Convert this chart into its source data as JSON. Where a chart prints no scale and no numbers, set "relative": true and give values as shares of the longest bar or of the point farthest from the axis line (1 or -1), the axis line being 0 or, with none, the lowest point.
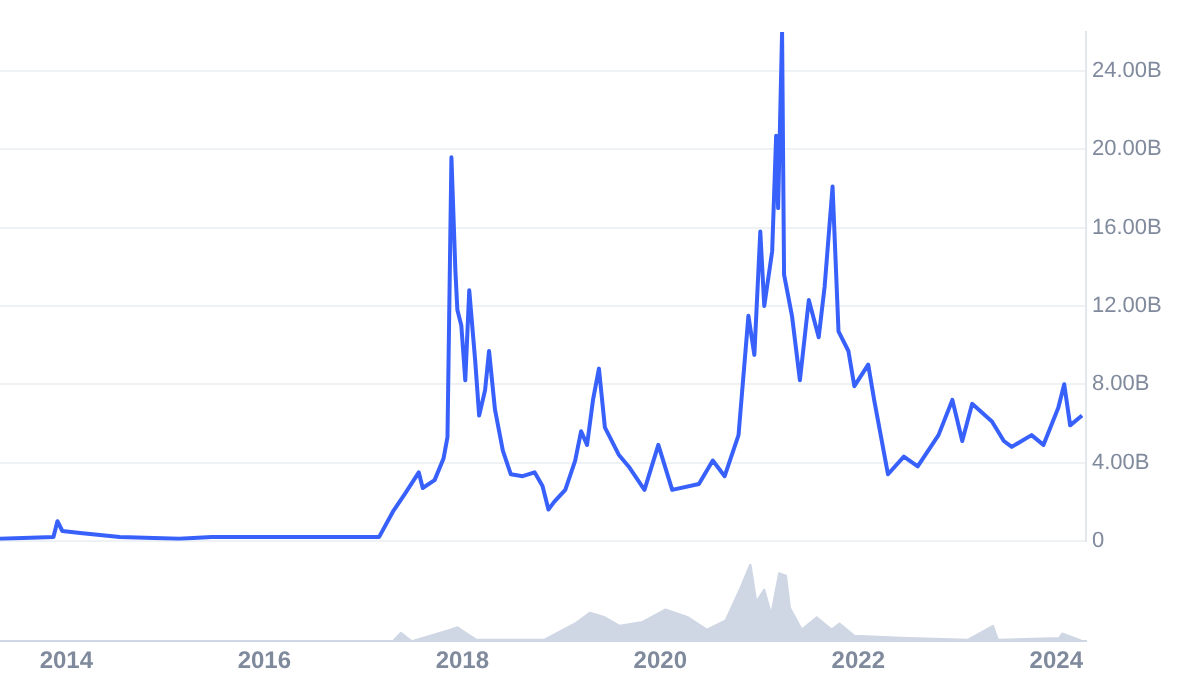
{
  "chart_data": [
    {
      "type": "line",
      "xlim": [
        2013.33,
        2024.3
      ],
      "xticks": [
        2014,
        2016,
        2018,
        2020,
        2022,
        2024
      ],
      "ylim": [
        0,
        26
      ],
      "yticks": [
        0,
        {
          "value": 4,
          "label": "4.00B"
        },
        {
          "value": 8,
          "label": "8.00B"
        },
        {
          "value": 12,
          "label": "12.00B"
        },
        {
          "value": 16,
          "label": "16.00B"
        },
        {
          "value": 20,
          "label": "20.00B"
        },
        {
          "value": 24,
          "label": "24.00B"
        }
      ],
      "grid": "y",
      "tick_labels": "y",
      "marker": "none",
      "series": [
        {
          "color": "#3861fb",
          "x": [
            2013.33,
            2013.87,
            2013.91,
            2013.96,
            2014.14,
            2014.54,
            2015.14,
            2015.47,
            2016.35,
            2017.16,
            2017.3,
            2017.42,
            2017.56,
            2017.6,
            2017.72,
            2017.81,
            2017.85,
            2017.89,
            2017.93,
            2017.95,
            2017.99,
            2018.03,
            2018.07,
            2018.13,
            2018.17,
            2018.23,
            2018.27,
            2018.33,
            2018.41,
            2018.49,
            2018.61,
            2018.73,
            2018.81,
            2018.87,
            2018.93,
            2019.04,
            2019.14,
            2019.2,
            2019.26,
            2019.32,
            2019.38,
            2019.44,
            2019.58,
            2019.68,
            2019.84,
            2019.98,
            2020.12,
            2020.39,
            2020.53,
            2020.65,
            2020.79,
            2020.89,
            2020.95,
            2021.01,
            2021.05,
            2021.13,
            2021.17,
            2021.19,
            2021.23,
            2021.25,
            2021.33,
            2021.41,
            2021.5,
            2021.6,
            2021.66,
            2021.74,
            2021.8,
            2021.9,
            2021.96,
            2022.1,
            2022.16,
            2022.3,
            2022.46,
            2022.6,
            2022.81,
            2022.95,
            2023.05,
            2023.15,
            2023.35,
            2023.47,
            2023.55,
            2023.75,
            2023.87,
            2024.02,
            2024.08,
            2024.14,
            2024.26
          ],
          "values": [
            0.1,
            0.2,
            1.0,
            0.5,
            0.4,
            0.2,
            0.1,
            0.2,
            0.2,
            0.2,
            1.5,
            2.4,
            3.5,
            2.7,
            3.1,
            4.2,
            5.3,
            19.6,
            13.8,
            11.8,
            11.0,
            8.2,
            12.8,
            9.2,
            6.4,
            7.7,
            9.7,
            6.7,
            4.6,
            3.4,
            3.3,
            3.5,
            2.8,
            1.6,
            2.0,
            2.6,
            4.1,
            5.6,
            4.9,
            7.2,
            8.8,
            5.8,
            4.4,
            3.8,
            2.6,
            4.9,
            2.6,
            2.9,
            4.1,
            3.3,
            5.4,
            11.5,
            9.5,
            15.8,
            12.0,
            14.8,
            20.7,
            17.0,
            26.0,
            13.6,
            11.5,
            8.2,
            12.3,
            10.4,
            13.0,
            18.1,
            10.7,
            9.7,
            7.9,
            9.0,
            7.2,
            3.4,
            4.3,
            3.8,
            5.4,
            7.2,
            5.1,
            7.0,
            6.1,
            5.1,
            4.8,
            5.4,
            4.9,
            6.8,
            8.0,
            5.9,
            6.4
          ]
        }
      ]
    },
    {
      "type": "area",
      "relative": true,
      "xlim": [
        2013.33,
        2024.3
      ],
      "xticks": [
        2014,
        2016,
        2018,
        2020,
        2022,
        2024
      ],
      "tick_labels": "x",
      "series": [
        {
          "color": "#cfd6e4",
          "x": [
            2017.3,
            2017.38,
            2017.49,
            2017.88,
            2017.95,
            2018.14,
            2018.83,
            2019.14,
            2019.29,
            2019.44,
            2019.59,
            2019.82,
            2020.05,
            2020.28,
            2020.47,
            2020.66,
            2020.82,
            2020.91,
            2020.97,
            2021.05,
            2021.12,
            2021.2,
            2021.27,
            2021.31,
            2021.43,
            2021.58,
            2021.73,
            2021.81,
            2021.96,
            2022.5,
            2023.11,
            2023.36,
            2023.41,
            2024.03,
            2024.06,
            2024.25
          ],
          "values": [
            0,
            0.11,
            0,
            0.15,
            0.18,
            0.02,
            0.02,
            0.23,
            0.37,
            0.31,
            0.2,
            0.25,
            0.41,
            0.31,
            0.15,
            0.27,
            0.72,
            1,
            0.51,
            0.67,
            0.35,
            0.88,
            0.85,
            0.43,
            0.15,
            0.31,
            0.15,
            0.23,
            0.07,
            0.04,
            0.02,
            0.2,
            0.02,
            0.04,
            0.1,
            0.01
          ]
        }
      ]
    }
  ]
}
